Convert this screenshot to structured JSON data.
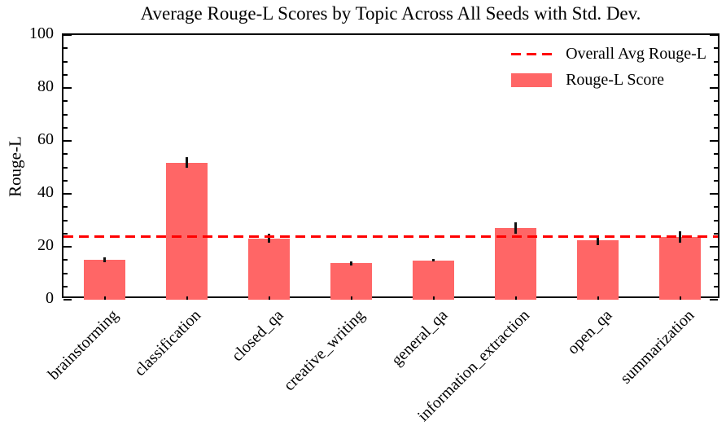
{
  "title": "Average Rouge-L Scores by Topic Across All Seeds with Std. Dev.",
  "ylabel": "Rouge-L",
  "legend": [
    {
      "label": "Overall Avg Rouge-L",
      "type": "dashed-line",
      "color": "#ff0000"
    },
    {
      "label": "Rouge-L Score",
      "type": "bar",
      "color": "#ff6666"
    }
  ],
  "chart_data": {
    "type": "bar",
    "title": "Average Rouge-L Scores by Topic Across All Seeds with Std. Dev.",
    "xlabel": "",
    "ylabel": "Rouge-L",
    "categories": [
      "brainstorming",
      "classification",
      "closed_qa",
      "creative_writing",
      "general_qa",
      "information_extraction",
      "open_qa",
      "summarization"
    ],
    "values": [
      15.2,
      51.8,
      23.1,
      13.7,
      14.9,
      27.1,
      22.5,
      23.6
    ],
    "errors": [
      0.9,
      1.9,
      1.7,
      0.9,
      0.4,
      2.2,
      1.8,
      2.2
    ],
    "overall_avg": 24.0,
    "ylim": [
      0,
      100
    ],
    "yticks": [
      0,
      20,
      40,
      60,
      80,
      100
    ],
    "minor_tick_step": 5,
    "grid": false,
    "legend_position": "upper right",
    "legend_entries": [
      "Overall Avg Rouge-L",
      "Rouge-L Score"
    ],
    "bar_color": "#ff6666",
    "avg_line_color": "#ff0000",
    "error_bar_color": "#111111",
    "x_label_rotation_deg": 45
  }
}
